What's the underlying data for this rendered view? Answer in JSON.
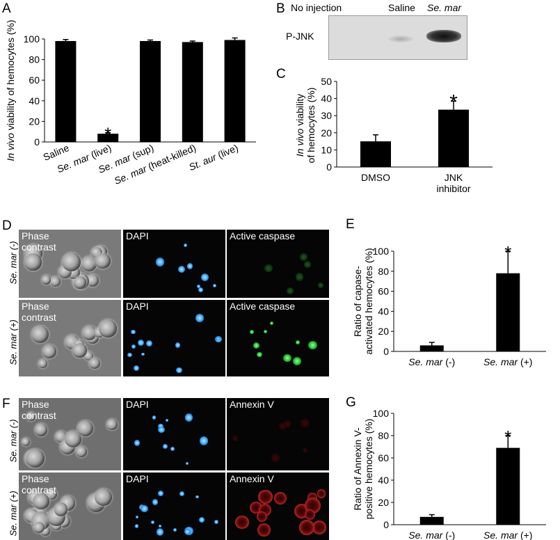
{
  "panels": {
    "A": "A",
    "B": "B",
    "C": "C",
    "D": "D",
    "E": "E",
    "F": "F",
    "G": "G"
  },
  "chart_data": [
    {
      "id": "A",
      "type": "bar",
      "ylabel_italic": "In vivo",
      "ylabel_rest": " viability of hemocytes (%)",
      "categories": [
        "Saline",
        "Se. mar (live)",
        "Se. mar (sup)",
        "Se. mar (heat-killed)",
        "St. aur (live)"
      ],
      "values": [
        98,
        8,
        98,
        97,
        99
      ],
      "errors": [
        1.5,
        1,
        1,
        1,
        2
      ],
      "significance": [
        "",
        "*",
        "",
        "",
        ""
      ],
      "yticks": [
        0,
        20,
        40,
        60,
        80,
        100
      ],
      "ylim": [
        0,
        100
      ]
    },
    {
      "id": "C",
      "type": "bar",
      "ylabel_line1_italic": "In vivo",
      "ylabel_line1_rest": " viability",
      "ylabel_line2": "of hemocytes (%)",
      "categories": [
        "DMSO",
        "JNK inhibitor"
      ],
      "category_lines": [
        [
          "DMSO"
        ],
        [
          "JNK",
          "inhibitor"
        ]
      ],
      "values": [
        15,
        33.5
      ],
      "errors": [
        3.8,
        5
      ],
      "significance": [
        "",
        "*"
      ],
      "yticks": [
        0,
        10,
        20,
        30,
        40,
        50
      ],
      "ylim": [
        0,
        50
      ]
    },
    {
      "id": "E",
      "type": "bar",
      "ylabel_line1": "Ratio of capase-",
      "ylabel_line2": "activated hemocytes (%)",
      "categories": [
        "Se. mar (-)",
        "Se. mar (+)"
      ],
      "values": [
        6,
        78
      ],
      "errors": [
        3,
        22
      ],
      "significance": [
        "",
        "*"
      ],
      "yticks": [
        0,
        20,
        40,
        60,
        80,
        100
      ],
      "ylim": [
        0,
        100
      ]
    },
    {
      "id": "G",
      "type": "bar",
      "ylabel_line1": "Ratio of Annexin V-",
      "ylabel_line2": "positive hemocytes (%)",
      "categories": [
        "Se. mar (-)",
        "Se. mar (+)"
      ],
      "values": [
        7,
        69
      ],
      "errors": [
        2,
        11
      ],
      "significance": [
        "",
        "*"
      ],
      "yticks": [
        0,
        20,
        40,
        60,
        80,
        100
      ],
      "ylim": [
        0,
        100
      ]
    }
  ],
  "blot": {
    "lanes": [
      "No injection",
      "Saline",
      "Se. mar"
    ],
    "row_label": "P-JNK"
  },
  "micrographs": {
    "D": {
      "rows": [
        "Se. mar (-)",
        "Se. mar (+)"
      ],
      "columns": [
        "Phase\ncontrast",
        "DAPI",
        "Active caspase"
      ]
    },
    "F": {
      "rows": [
        "Se. mar (-)",
        "Se. mar (+)"
      ],
      "columns": [
        "Phase\ncontrast",
        "DAPI",
        "Annexin V"
      ]
    }
  }
}
